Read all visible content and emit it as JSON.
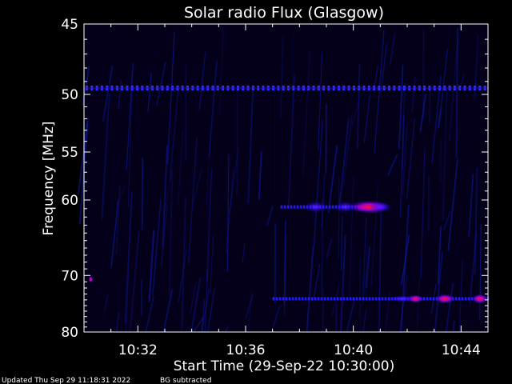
{
  "chart_data": {
    "type": "heatmap",
    "title": "Solar radio Flux (Glasgow)",
    "xlabel": "Start Time (29-Sep-22 10:30:00)",
    "ylabel": "Frequency [MHz]",
    "x_range_minutes": [
      "10:30:00",
      "10:45:00"
    ],
    "x_ticks": [
      "10:32",
      "10:36",
      "10:40",
      "10:44"
    ],
    "x_tick_minutes": [
      2,
      6,
      10,
      14
    ],
    "y_range_mhz": [
      45,
      80
    ],
    "y_scale": "reciprocal",
    "y_ticks": [
      "45",
      "50",
      "55",
      "60",
      "70",
      "80"
    ],
    "y_tick_values": [
      45,
      50,
      55,
      60,
      70,
      80
    ],
    "colors": {
      "background": "#000000",
      "plot_background": "#04001a",
      "low": "#0000ff",
      "mid": "#7a00ff",
      "high": "#ff0030",
      "axes": "#ffffff"
    },
    "features": [
      {
        "name": "continuous-line",
        "freq_mhz": 49.5,
        "x_start_min": 0,
        "x_end_min": 15
      },
      {
        "name": "emission-band",
        "freq_mhz": 60.8,
        "x_start_min": 7.3,
        "x_end_min": 11.0
      },
      {
        "name": "emission-band",
        "freq_mhz": 73.8,
        "x_start_min": 7.0,
        "x_end_min": 15
      }
    ]
  },
  "footer": {
    "updated": "Updated Thu Sep 29 11:18:31 2022",
    "bg_note": "BG subtracted"
  }
}
